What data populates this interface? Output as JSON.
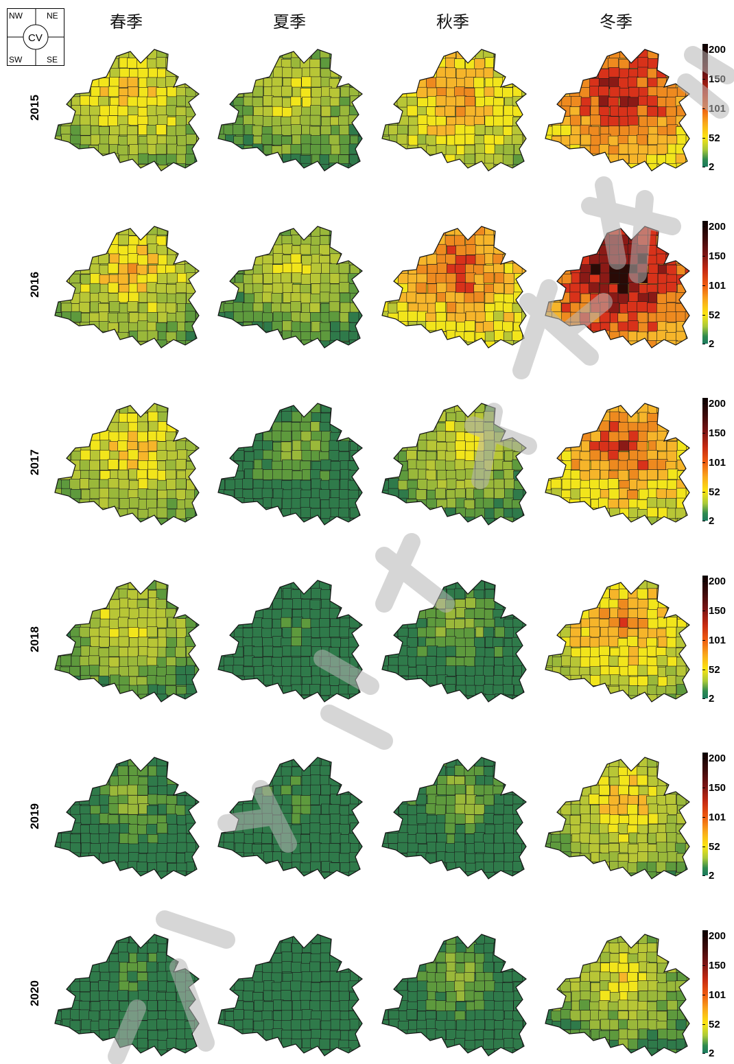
{
  "compass": {
    "nw": "NW",
    "ne": "NE",
    "center": "CV",
    "sw": "SW",
    "se": "SE"
  },
  "seasons": [
    "春季",
    "夏季",
    "秋季",
    "冬季"
  ],
  "years": [
    "2015",
    "2016",
    "2017",
    "2018",
    "2019",
    "2020"
  ],
  "colorbar": {
    "ticks": [
      "200",
      "150",
      "101",
      "52",
      "2"
    ]
  },
  "colors": {
    "dark_green": "#2f7a4a",
    "mid_green": "#5e9a3d",
    "light_green": "#9ab83a",
    "olive": "#b8c636",
    "yellow": "#f2e51b",
    "orange_light": "#f6b52a",
    "orange": "#ee8a1f",
    "red": "#d8321a",
    "dark_red": "#8a1a16",
    "black_red": "#2a0a06"
  },
  "chart_data": {
    "type": "heatmap",
    "rows": [
      "2015",
      "2016",
      "2017",
      "2018",
      "2019",
      "2020"
    ],
    "columns": [
      "春季",
      "夏季",
      "秋季",
      "冬季"
    ],
    "value_range": [
      2,
      200
    ],
    "dominant_levels": [
      [
        "orange_light",
        "yellow",
        "orange",
        "dark_red"
      ],
      [
        "orange_light",
        "yellow",
        "red",
        "black_red"
      ],
      [
        "orange_light",
        "light_green",
        "yellow",
        "red"
      ],
      [
        "yellow",
        "mid_green",
        "light_green",
        "orange"
      ],
      [
        "light_green",
        "mid_green",
        "light_green",
        "orange_light"
      ],
      [
        "mid_green",
        "dark_green",
        "light_green",
        "yellow"
      ]
    ]
  }
}
